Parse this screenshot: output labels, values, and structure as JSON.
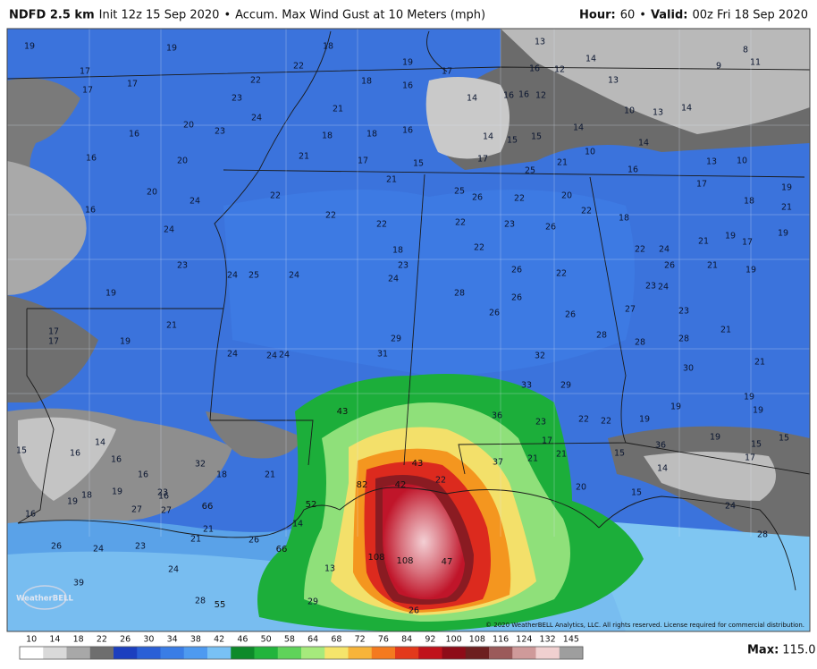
{
  "header": {
    "model": "NDFD 2.5 km",
    "init": "Init 12z 15 Sep 2020",
    "separator": "•",
    "product": "Accum. Max Wind Gust at 10 Meters (mph)",
    "hour_label": "Hour:",
    "hour": "60",
    "valid_label": "Valid:",
    "valid": "00z Fri 18 Sep 2020"
  },
  "map": {
    "labels": [
      19,
      19,
      18,
      22,
      19,
      13,
      14,
      8,
      9,
      11,
      17,
      17,
      17,
      22,
      18,
      16,
      17,
      16,
      12,
      13,
      23,
      24,
      21,
      14,
      16,
      16,
      12,
      10,
      13,
      14,
      16,
      20,
      23,
      18,
      18,
      16,
      14,
      15,
      15,
      14,
      16,
      20,
      21,
      17,
      15,
      17,
      25,
      21,
      16,
      10,
      14,
      10,
      13,
      20,
      24,
      16,
      22,
      21,
      25,
      26,
      22,
      20,
      22,
      18,
      17,
      18,
      19,
      21,
      24,
      22,
      22,
      23,
      26,
      22,
      22,
      24,
      26,
      22,
      21,
      19,
      17,
      23,
      24,
      25,
      24,
      18,
      23,
      24,
      26,
      22,
      21,
      19,
      19,
      28,
      26,
      26,
      26,
      27,
      23,
      24,
      19,
      17,
      17,
      19,
      21,
      28,
      28,
      23,
      21,
      29,
      31,
      32,
      24,
      24,
      24,
      28,
      30,
      21,
      19,
      33,
      29,
      22,
      19,
      19,
      19,
      14,
      15,
      16,
      32,
      43,
      36,
      23,
      22,
      19,
      36,
      17,
      15,
      14,
      15,
      16,
      16,
      18,
      21,
      23,
      66,
      43,
      37,
      21,
      21,
      15,
      17,
      18,
      19,
      16,
      27,
      52,
      82,
      42,
      22,
      20,
      15,
      16,
      19,
      27,
      14,
      24,
      26,
      24,
      23,
      21,
      21,
      26,
      66,
      108,
      108,
      47,
      13,
      28,
      24,
      39,
      29,
      28,
      55,
      26
    ],
    "copyright": "© 2020 WeatherBELL Analytics, LLC. All rights reserved. License required for commercial distribution.",
    "logo": "WeatherBELL"
  },
  "legend": {
    "ticks": [
      10,
      14,
      18,
      22,
      26,
      30,
      34,
      38,
      42,
      46,
      50,
      58,
      64,
      68,
      72,
      76,
      84,
      92,
      100,
      108,
      116,
      124,
      132,
      145
    ]
  },
  "max": {
    "label": "Max:",
    "value": "115.0"
  }
}
